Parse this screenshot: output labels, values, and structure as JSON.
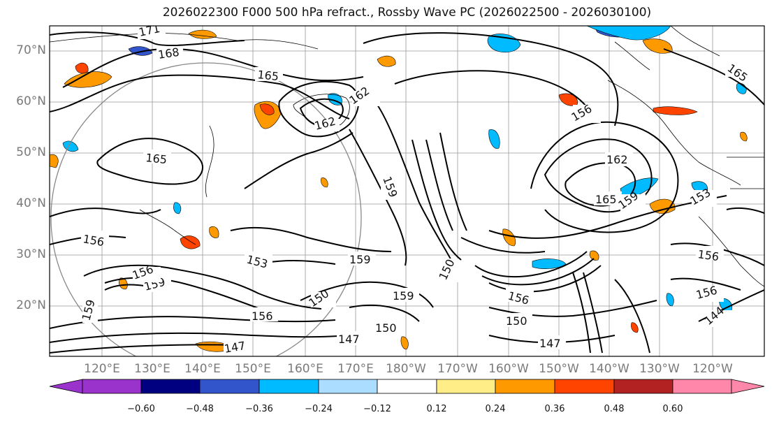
{
  "title": "2026022300 F000 500 hPa refract., Rossby Wave PC (2026022500 - 2026030100)",
  "lat_labels": [
    "70°N",
    "60°N",
    "50°N",
    "40°N",
    "30°N",
    "20°N"
  ],
  "lon_labels": [
    "120°E",
    "130°E",
    "140°E",
    "150°E",
    "160°E",
    "170°E",
    "180°W",
    "170°W",
    "160°W",
    "150°W",
    "140°W",
    "130°W",
    "120°W"
  ],
  "contour_labels": [
    "171",
    "168",
    "165",
    "162",
    "159",
    "156",
    "153",
    "150",
    "147",
    "144"
  ],
  "colorbar": {
    "colors": [
      "#9933cc",
      "#000080",
      "#3355cc",
      "#00bbff",
      "#aaddff",
      "#ffffff",
      "#ffee88",
      "#ff9900",
      "#ff4400",
      "#b22222",
      "#ff88aa"
    ],
    "tick_labels": [
      "−0.60",
      "−0.48",
      "−0.36",
      "−0.24",
      "−0.12",
      "0.12",
      "0.24",
      "0.36",
      "0.48",
      "0.60"
    ]
  },
  "colors": {
    "contour": "#000000",
    "coast": "#000000",
    "grid": "#999999",
    "circle": "#888888"
  }
}
